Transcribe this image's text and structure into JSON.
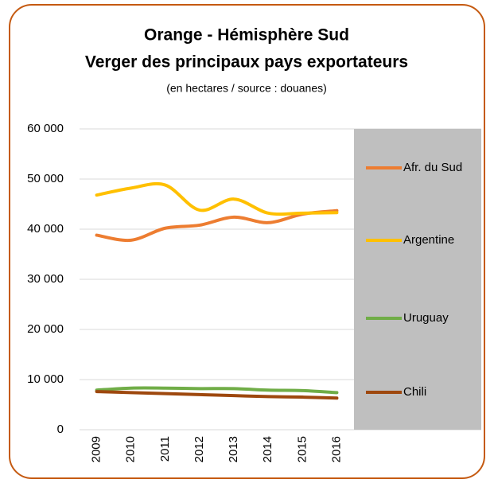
{
  "chart_data": {
    "type": "line",
    "title": "Orange - Hémisphère Sud",
    "subtitle": "Verger des principaux pays exportateurs",
    "note": "(en hectares / source : douanes)",
    "categories": [
      "2009",
      "2010",
      "2011",
      "2012",
      "2013",
      "2014",
      "2015",
      "2016"
    ],
    "series": [
      {
        "name": "Afr. du Sud",
        "color": "#ed7d31",
        "values": [
          38800,
          37800,
          40200,
          40800,
          42400,
          41300,
          43000,
          43700
        ]
      },
      {
        "name": "Argentine",
        "color": "#ffc000",
        "values": [
          46800,
          48200,
          48800,
          43800,
          46000,
          43200,
          43200,
          43300
        ]
      },
      {
        "name": "Uruguay",
        "color": "#70ad47",
        "values": [
          7900,
          8300,
          8300,
          8200,
          8200,
          7900,
          7800,
          7400
        ]
      },
      {
        "name": "Chili",
        "color": "#9e480e",
        "values": [
          7600,
          7400,
          7200,
          7000,
          6800,
          6600,
          6500,
          6300
        ]
      }
    ],
    "ylim": [
      0,
      60000
    ],
    "yticks": [
      0,
      {
        "value": 10000,
        "label": "10 000"
      },
      {
        "value": 20000,
        "label": "20 000"
      },
      {
        "value": 30000,
        "label": "30 000"
      },
      {
        "value": 40000,
        "label": "40 000"
      },
      {
        "value": 50000,
        "label": "50 000"
      },
      {
        "value": 60000,
        "label": "60 000"
      }
    ],
    "grid": true,
    "legend": "right"
  }
}
